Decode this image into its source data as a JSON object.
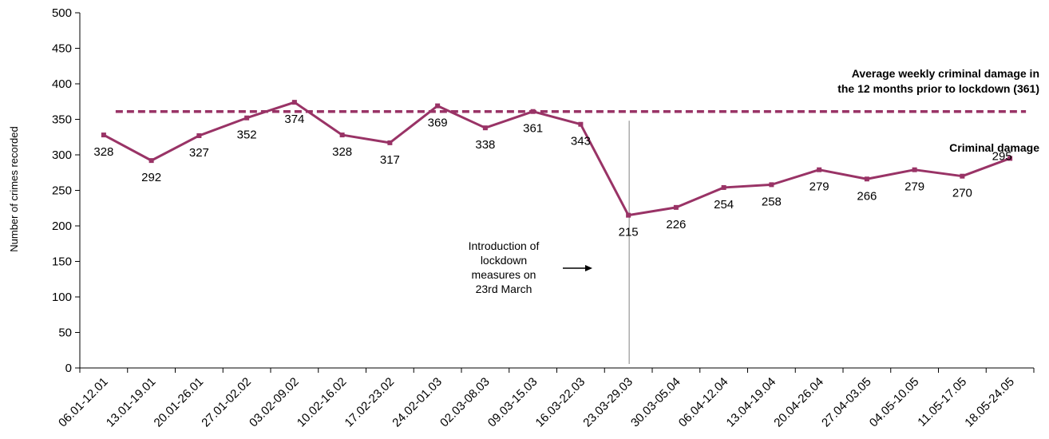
{
  "chart_data": {
    "type": "line",
    "categories": [
      "06.01-12.01",
      "13.01-19.01",
      "20.01-26.01",
      "27.01-02.02",
      "03.02-09.02",
      "10.02-16.02",
      "17.02-23.02",
      "24.02-01.03",
      "02.03-08.03",
      "09.03-15.03",
      "16.03-22.03",
      "23.03-29.03",
      "30.03-05.04",
      "06.04-12.04",
      "13.04-19.04",
      "20.04-26.04",
      "27.04-03.05",
      "04.05-10.05",
      "11.05-17.05",
      "18.05-24.05"
    ],
    "series": [
      {
        "name": "Criminal damage",
        "values": [
          328,
          292,
          327,
          352,
          374,
          328,
          317,
          369,
          338,
          361,
          343,
          215,
          226,
          254,
          258,
          279,
          266,
          279,
          270,
          295
        ],
        "color": "#993366"
      }
    ],
    "average": {
      "value": 361,
      "label_line1": "Average weekly criminal damage in",
      "label_line2": "the 12 months prior to lockdown (361)",
      "color": "#993366"
    },
    "annotation": {
      "lines": [
        "Introduction of",
        "lockdown",
        "measures on",
        "23rd March"
      ],
      "arrow": "→"
    },
    "ylabel": "Number of crimes recorded",
    "ylim": [
      0,
      500
    ],
    "yticks": [
      0,
      50,
      100,
      150,
      200,
      250,
      300,
      350,
      400,
      450,
      500
    ],
    "grid": false,
    "title": ""
  }
}
